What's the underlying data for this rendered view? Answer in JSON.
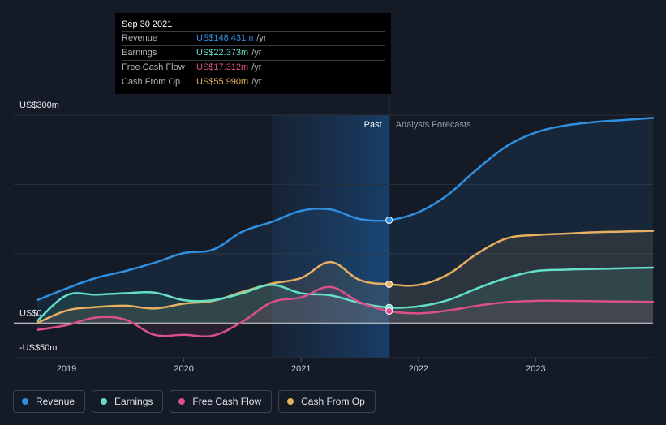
{
  "chart_data": {
    "type": "area",
    "title": "",
    "xlabel": "",
    "ylabel": "",
    "ylim": [
      -50,
      300
    ],
    "y_ticks": [
      {
        "value": 300,
        "label": "US$300m"
      },
      {
        "value": 0,
        "label": "US$0"
      },
      {
        "value": -50,
        "label": "-US$50m"
      }
    ],
    "x_ticks": [
      {
        "value": 2019,
        "label": "2019"
      },
      {
        "value": 2020,
        "label": "2020"
      },
      {
        "value": 2021,
        "label": "2021"
      },
      {
        "value": 2022,
        "label": "2022"
      },
      {
        "value": 2023,
        "label": "2023"
      }
    ],
    "xlim": [
      2018.55,
      2024.0
    ],
    "highlight_range": [
      2020.75,
      2021.75
    ],
    "past_label": "Past",
    "forecast_label": "Analysts Forecasts",
    "divider_x": 2021.75,
    "series": [
      {
        "name": "Revenue",
        "color": "#2f8fe0",
        "points": [
          [
            2018.75,
            33
          ],
          [
            2019.0,
            50
          ],
          [
            2019.25,
            65
          ],
          [
            2019.5,
            75
          ],
          [
            2019.75,
            87
          ],
          [
            2020.0,
            101
          ],
          [
            2020.25,
            106
          ],
          [
            2020.5,
            132
          ],
          [
            2020.75,
            146
          ],
          [
            2021.0,
            162
          ],
          [
            2021.25,
            164
          ],
          [
            2021.5,
            150
          ],
          [
            2021.75,
            148.4
          ],
          [
            2022.0,
            160
          ],
          [
            2022.25,
            185
          ],
          [
            2022.5,
            222
          ],
          [
            2022.75,
            255
          ],
          [
            2023.0,
            275
          ],
          [
            2023.25,
            285
          ],
          [
            2023.5,
            290
          ],
          [
            2023.75,
            293
          ],
          [
            2024.0,
            296
          ]
        ]
      },
      {
        "name": "Earnings",
        "color": "#63e0c5",
        "points": [
          [
            2018.75,
            3
          ],
          [
            2019.0,
            40
          ],
          [
            2019.25,
            41
          ],
          [
            2019.5,
            43
          ],
          [
            2019.75,
            44
          ],
          [
            2020.0,
            33
          ],
          [
            2020.25,
            33
          ],
          [
            2020.5,
            43
          ],
          [
            2020.75,
            55
          ],
          [
            2021.0,
            43
          ],
          [
            2021.25,
            40
          ],
          [
            2021.5,
            29
          ],
          [
            2021.75,
            22.4
          ],
          [
            2022.0,
            24
          ],
          [
            2022.25,
            33
          ],
          [
            2022.5,
            50
          ],
          [
            2022.75,
            65
          ],
          [
            2023.0,
            75
          ],
          [
            2023.25,
            77
          ],
          [
            2023.5,
            78
          ],
          [
            2023.75,
            79
          ],
          [
            2024.0,
            80
          ]
        ]
      },
      {
        "name": "Free Cash Flow",
        "color": "#d9508a",
        "points": [
          [
            2018.75,
            -10
          ],
          [
            2019.0,
            -3
          ],
          [
            2019.25,
            8
          ],
          [
            2019.5,
            5
          ],
          [
            2019.75,
            -17
          ],
          [
            2020.0,
            -17
          ],
          [
            2020.25,
            -18
          ],
          [
            2020.5,
            2
          ],
          [
            2020.75,
            30
          ],
          [
            2021.0,
            37
          ],
          [
            2021.25,
            52
          ],
          [
            2021.5,
            30
          ],
          [
            2021.75,
            17.3
          ],
          [
            2022.0,
            14
          ],
          [
            2022.25,
            18
          ],
          [
            2022.5,
            25
          ],
          [
            2022.75,
            30
          ],
          [
            2023.0,
            32
          ],
          [
            2023.25,
            32
          ],
          [
            2023.5,
            31.5
          ],
          [
            2023.75,
            31
          ],
          [
            2024.0,
            30.5
          ]
        ]
      },
      {
        "name": "Cash From Op",
        "color": "#e8b061",
        "points": [
          [
            2018.75,
            0
          ],
          [
            2019.0,
            18
          ],
          [
            2019.25,
            23
          ],
          [
            2019.5,
            25
          ],
          [
            2019.75,
            21
          ],
          [
            2020.0,
            28
          ],
          [
            2020.25,
            32
          ],
          [
            2020.5,
            45
          ],
          [
            2020.75,
            57
          ],
          [
            2021.0,
            65
          ],
          [
            2021.25,
            88
          ],
          [
            2021.5,
            62
          ],
          [
            2021.75,
            56
          ],
          [
            2022.0,
            55
          ],
          [
            2022.25,
            70
          ],
          [
            2022.5,
            100
          ],
          [
            2022.75,
            122
          ],
          [
            2023.0,
            127
          ],
          [
            2023.25,
            129
          ],
          [
            2023.5,
            131
          ],
          [
            2023.75,
            132
          ],
          [
            2024.0,
            133
          ]
        ]
      }
    ]
  },
  "tooltip": {
    "date": "Sep 30 2021",
    "rows": [
      {
        "label": "Revenue",
        "value": "US$148.431m",
        "unit": "/yr",
        "color": "#2f8fe0"
      },
      {
        "label": "Earnings",
        "value": "US$22.373m",
        "unit": "/yr",
        "color": "#63e0c5"
      },
      {
        "label": "Free Cash Flow",
        "value": "US$17.312m",
        "unit": "/yr",
        "color": "#d9508a"
      },
      {
        "label": "Cash From Op",
        "value": "US$55.990m",
        "unit": "/yr",
        "color": "#e8b061"
      }
    ]
  },
  "legend": [
    {
      "label": "Revenue",
      "color": "#2f8fe0"
    },
    {
      "label": "Earnings",
      "color": "#63e0c5"
    },
    {
      "label": "Free Cash Flow",
      "color": "#d9508a"
    },
    {
      "label": "Cash From Op",
      "color": "#e8b061"
    }
  ]
}
